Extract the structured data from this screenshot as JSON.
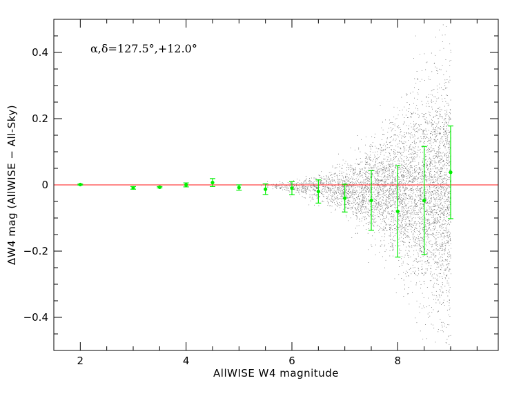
{
  "chart_data": {
    "type": "scatter",
    "annotation": "α,δ=127.5°,+12.0°",
    "xlabel": "AllWISE W4 magnitude",
    "ylabel": "ΔW4 mag (AllWISE − All-Sky)",
    "xlim": [
      1.5,
      9.9
    ],
    "ylim": [
      -0.5,
      0.5
    ],
    "x_ticks": [
      2,
      4,
      6,
      8
    ],
    "x_tick_labels": [
      "2",
      "4",
      "6",
      "8"
    ],
    "x_minor_step": 0.5,
    "y_ticks": [
      -0.4,
      -0.2,
      0,
      0.2,
      0.4
    ],
    "y_tick_labels": [
      "−0.4",
      "−0.2",
      "0",
      "0.2",
      "0.4"
    ],
    "y_minor_step": 0.05,
    "reference_line": {
      "y": 0,
      "color": "#ff4040"
    },
    "binned_medians": {
      "color": "#00ee00",
      "points": [
        {
          "x": 2.0,
          "y": 0.001,
          "err": 0.0015
        },
        {
          "x": 3.0,
          "y": -0.009,
          "err": 0.004
        },
        {
          "x": 3.5,
          "y": -0.007,
          "err": 0.002
        },
        {
          "x": 4.0,
          "y": 0.0,
          "err": 0.006
        },
        {
          "x": 4.5,
          "y": 0.007,
          "err": 0.012
        },
        {
          "x": 5.0,
          "y": -0.008,
          "err": 0.008
        },
        {
          "x": 5.5,
          "y": -0.013,
          "err": 0.016
        },
        {
          "x": 6.0,
          "y": -0.01,
          "err": 0.02
        },
        {
          "x": 6.5,
          "y": -0.02,
          "err": 0.035
        },
        {
          "x": 7.0,
          "y": -0.04,
          "err": 0.042
        },
        {
          "x": 7.5,
          "y": -0.047,
          "err": 0.09
        },
        {
          "x": 8.0,
          "y": -0.08,
          "err": 0.138
        },
        {
          "x": 8.5,
          "y": -0.047,
          "err": 0.163
        },
        {
          "x": 9.0,
          "y": 0.038,
          "err": 0.14
        }
      ]
    },
    "scatter_color": "#000000"
  }
}
